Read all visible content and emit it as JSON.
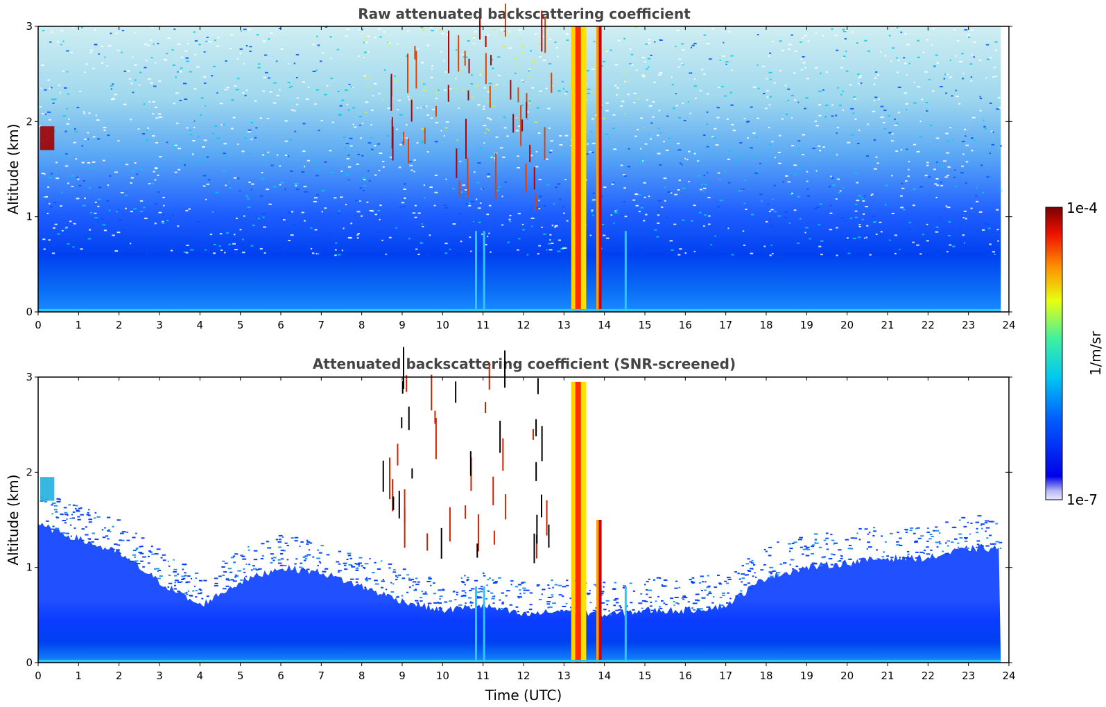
{
  "figure": {
    "colorbar": {
      "max_label": "1e-4",
      "min_label": "1e-7",
      "unit_label": "1/m/sr",
      "colormap": "jet",
      "scale": "log",
      "range": [
        1e-07,
        0.0001
      ]
    },
    "xlabel": "Time (UTC)"
  },
  "chart_data": [
    {
      "type": "heatmap",
      "title": "Raw attenuated backscattering coefficient",
      "xlabel": "",
      "ylabel": "Altitude (km)",
      "xlim": [
        0,
        24
      ],
      "ylim": [
        0,
        3
      ],
      "x_ticks": [
        "0",
        "1",
        "2",
        "3",
        "4",
        "5",
        "6",
        "7",
        "8",
        "9",
        "10",
        "11",
        "12",
        "13",
        "14",
        "15",
        "16",
        "17",
        "18",
        "19",
        "20",
        "21",
        "22",
        "23",
        "24"
      ],
      "y_ticks": [
        "0",
        "1",
        "2",
        "3"
      ],
      "data_extent_x": [
        0,
        23.8
      ],
      "z_unit": "1/m/sr",
      "features": {
        "boundary_layer_top_km": 0.9,
        "dense_cloud_columns_utc": [
          [
            13.2,
            13.55
          ],
          [
            13.8,
            13.95
          ]
        ],
        "scattered_cloud_window_utc": [
          8.5,
          12.5
        ],
        "thin_column_utc": [
          10.8,
          11.0,
          14.5
        ]
      }
    },
    {
      "type": "heatmap",
      "title": "Attenuated backscattering coefficient (SNR-screened)",
      "xlabel": "Time (UTC)",
      "ylabel": "Altitude (km)",
      "xlim": [
        0,
        24
      ],
      "ylim": [
        0,
        3
      ],
      "x_ticks": [
        "0",
        "1",
        "2",
        "3",
        "4",
        "5",
        "6",
        "7",
        "8",
        "9",
        "10",
        "11",
        "12",
        "13",
        "14",
        "15",
        "16",
        "17",
        "18",
        "19",
        "20",
        "21",
        "22",
        "23",
        "24"
      ],
      "y_ticks": [
        "0",
        "1",
        "2",
        "3"
      ],
      "data_extent_x": [
        0,
        23.8
      ],
      "z_unit": "1/m/sr",
      "screened_top_km": [
        [
          0,
          1.45
        ],
        [
          1,
          1.3
        ],
        [
          2,
          1.15
        ],
        [
          3,
          0.85
        ],
        [
          4,
          0.6
        ],
        [
          5,
          0.85
        ],
        [
          6,
          1.0
        ],
        [
          7,
          0.95
        ],
        [
          8,
          0.8
        ],
        [
          9,
          0.65
        ],
        [
          10,
          0.55
        ],
        [
          11,
          0.6
        ],
        [
          12,
          0.5
        ],
        [
          13,
          0.55
        ],
        [
          14,
          0.5
        ],
        [
          15,
          0.55
        ],
        [
          16,
          0.55
        ],
        [
          17,
          0.6
        ],
        [
          18,
          0.9
        ],
        [
          19,
          1.0
        ],
        [
          20,
          1.05
        ],
        [
          21,
          1.1
        ],
        [
          22,
          1.1
        ],
        [
          23,
          1.2
        ],
        [
          23.8,
          1.2
        ]
      ]
    }
  ]
}
